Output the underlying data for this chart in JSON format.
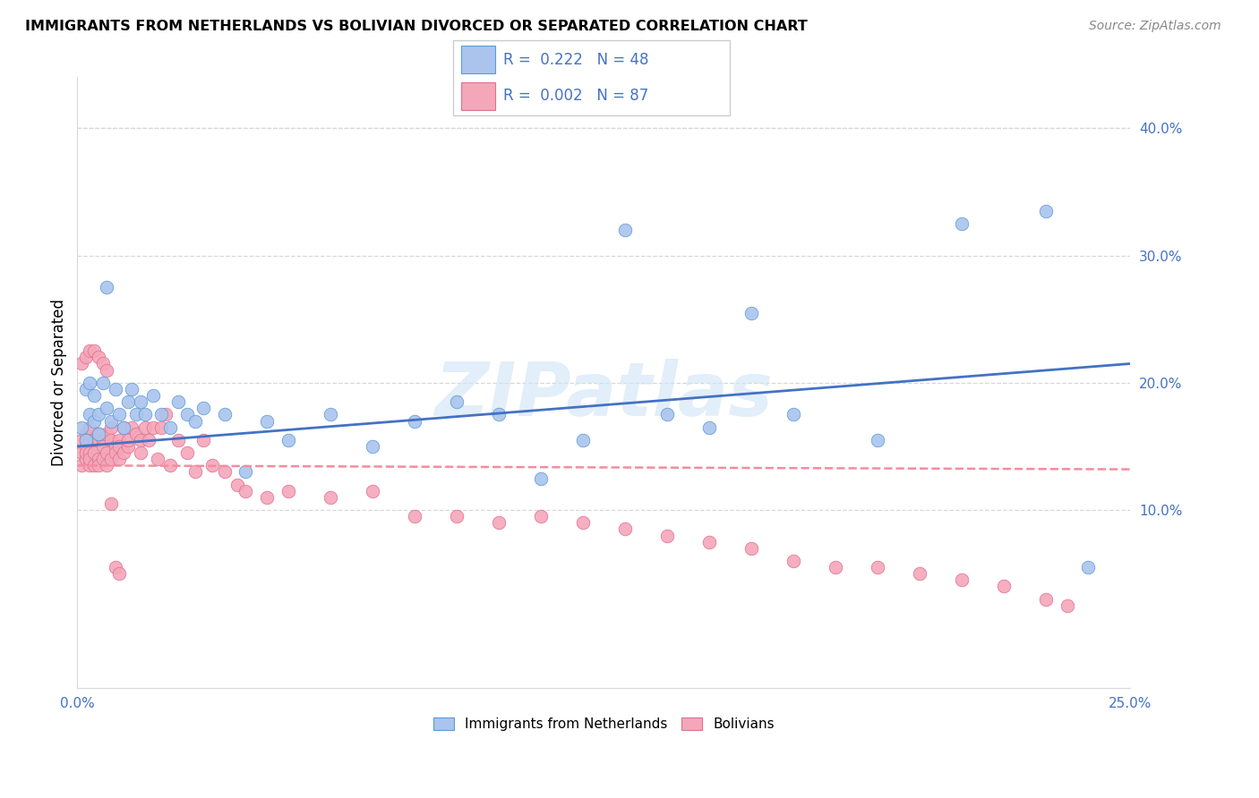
{
  "title": "IMMIGRANTS FROM NETHERLANDS VS BOLIVIAN DIVORCED OR SEPARATED CORRELATION CHART",
  "source": "Source: ZipAtlas.com",
  "ylabel": "Divorced or Separated",
  "xlim": [
    0.0,
    0.25
  ],
  "ylim": [
    -0.04,
    0.44
  ],
  "xticks": [
    0.0,
    0.05,
    0.1,
    0.15,
    0.2,
    0.25
  ],
  "xtick_labels": [
    "0.0%",
    "",
    "",
    "",
    "",
    "25.0%"
  ],
  "yticks_right": [
    0.1,
    0.2,
    0.3,
    0.4
  ],
  "ytick_labels_right": [
    "10.0%",
    "20.0%",
    "30.0%",
    "40.0%"
  ],
  "legend_entry1": "Immigrants from Netherlands",
  "legend_entry2": "Bolivians",
  "color_blue": "#aac4ee",
  "color_pink": "#f4a7b9",
  "color_blue_edge": "#5b9bd5",
  "color_pink_edge": "#e07090",
  "color_line_blue": "#4472c4",
  "color_line_pink": "#f48ca0",
  "R1": 0.222,
  "N1": 48,
  "R2": 0.002,
  "N2": 87,
  "blue_x": [
    0.001,
    0.002,
    0.002,
    0.003,
    0.003,
    0.004,
    0.004,
    0.005,
    0.005,
    0.006,
    0.007,
    0.007,
    0.008,
    0.009,
    0.01,
    0.011,
    0.012,
    0.013,
    0.014,
    0.015,
    0.016,
    0.018,
    0.02,
    0.022,
    0.024,
    0.026,
    0.028,
    0.03,
    0.035,
    0.04,
    0.045,
    0.05,
    0.06,
    0.07,
    0.08,
    0.09,
    0.1,
    0.11,
    0.12,
    0.13,
    0.14,
    0.15,
    0.16,
    0.17,
    0.19,
    0.21,
    0.23,
    0.24
  ],
  "blue_y": [
    0.165,
    0.155,
    0.195,
    0.175,
    0.2,
    0.17,
    0.19,
    0.16,
    0.175,
    0.2,
    0.18,
    0.275,
    0.17,
    0.195,
    0.175,
    0.165,
    0.185,
    0.195,
    0.175,
    0.185,
    0.175,
    0.19,
    0.175,
    0.165,
    0.185,
    0.175,
    0.17,
    0.18,
    0.175,
    0.13,
    0.17,
    0.155,
    0.175,
    0.15,
    0.17,
    0.185,
    0.175,
    0.125,
    0.155,
    0.32,
    0.175,
    0.165,
    0.255,
    0.175,
    0.155,
    0.325,
    0.335,
    0.055
  ],
  "pink_x": [
    0.001,
    0.001,
    0.001,
    0.002,
    0.002,
    0.002,
    0.002,
    0.003,
    0.003,
    0.003,
    0.003,
    0.003,
    0.004,
    0.004,
    0.004,
    0.005,
    0.005,
    0.005,
    0.005,
    0.006,
    0.006,
    0.006,
    0.007,
    0.007,
    0.007,
    0.008,
    0.008,
    0.008,
    0.009,
    0.009,
    0.01,
    0.01,
    0.01,
    0.011,
    0.011,
    0.012,
    0.012,
    0.013,
    0.014,
    0.015,
    0.015,
    0.016,
    0.017,
    0.018,
    0.019,
    0.02,
    0.021,
    0.022,
    0.024,
    0.026,
    0.028,
    0.03,
    0.032,
    0.035,
    0.038,
    0.04,
    0.045,
    0.05,
    0.06,
    0.07,
    0.08,
    0.09,
    0.1,
    0.11,
    0.12,
    0.13,
    0.14,
    0.15,
    0.16,
    0.17,
    0.18,
    0.19,
    0.2,
    0.21,
    0.22,
    0.23,
    0.235,
    0.001,
    0.002,
    0.003,
    0.004,
    0.005,
    0.006,
    0.007,
    0.008,
    0.009,
    0.01
  ],
  "pink_y": [
    0.145,
    0.135,
    0.155,
    0.14,
    0.15,
    0.16,
    0.145,
    0.135,
    0.145,
    0.155,
    0.165,
    0.14,
    0.135,
    0.155,
    0.145,
    0.14,
    0.155,
    0.16,
    0.135,
    0.155,
    0.14,
    0.15,
    0.16,
    0.145,
    0.135,
    0.165,
    0.14,
    0.155,
    0.15,
    0.145,
    0.155,
    0.14,
    0.15,
    0.145,
    0.165,
    0.15,
    0.155,
    0.165,
    0.16,
    0.145,
    0.155,
    0.165,
    0.155,
    0.165,
    0.14,
    0.165,
    0.175,
    0.135,
    0.155,
    0.145,
    0.13,
    0.155,
    0.135,
    0.13,
    0.12,
    0.115,
    0.11,
    0.115,
    0.11,
    0.115,
    0.095,
    0.095,
    0.09,
    0.095,
    0.09,
    0.085,
    0.08,
    0.075,
    0.07,
    0.06,
    0.055,
    0.055,
    0.05,
    0.045,
    0.04,
    0.03,
    0.025,
    0.215,
    0.22,
    0.225,
    0.225,
    0.22,
    0.215,
    0.21,
    0.105,
    0.055,
    0.05
  ],
  "blue_line_x": [
    0.0,
    0.25
  ],
  "blue_line_y": [
    0.15,
    0.215
  ],
  "pink_line_x": [
    0.0,
    0.25
  ],
  "pink_line_y": [
    0.135,
    0.132
  ],
  "watermark": "ZIPatlas",
  "watermark_color": "#d0e4f5",
  "grid_color": "#d8d8d8",
  "background_color": "#ffffff"
}
